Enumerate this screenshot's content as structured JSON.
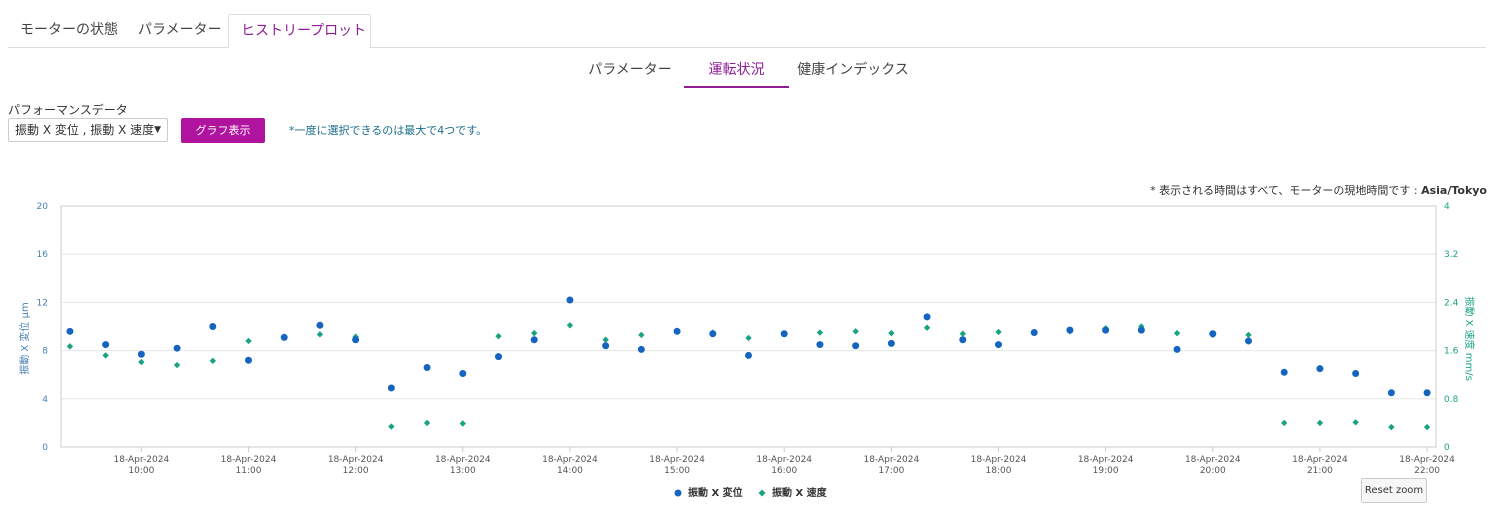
{
  "top_tabs": [
    "モーターの状態",
    "パラメーター",
    "ヒストリープロット"
  ],
  "sub_tabs": [
    "パラメーター",
    "運転状況",
    "健康インデックス"
  ],
  "performance": {
    "label": "パフォーマンスデータ",
    "selected": "振動 X 変位 , 振動 X 速度",
    "button": "グラフ表示",
    "note": "*一度に選択できるのは最大で4つです。"
  },
  "timezone_note": {
    "prefix": "* 表示される時間はすべて、モーターの現地時間です : ",
    "zone": "Asia/Tokyo"
  },
  "reset_zoom": "Reset zoom",
  "chart_data": {
    "type": "scatter",
    "x": [
      "09:20",
      "09:40",
      "10:00",
      "10:20",
      "10:40",
      "11:00",
      "11:20",
      "11:40",
      "12:00",
      "12:20",
      "12:40",
      "13:00",
      "13:20",
      "13:40",
      "14:00",
      "14:20",
      "14:40",
      "15:00",
      "15:20",
      "15:40",
      "16:00",
      "16:20",
      "16:40",
      "17:00",
      "17:20",
      "17:40",
      "18:00",
      "18:20",
      "18:40",
      "19:00",
      "19:20",
      "19:40",
      "20:00",
      "20:20",
      "20:40",
      "21:00",
      "21:20",
      "21:40",
      "22:00"
    ],
    "series": [
      {
        "name": "振動 X 変位",
        "axis": "left",
        "color": "#1565c0",
        "marker": "circle",
        "values": [
          9.6,
          8.5,
          7.7,
          8.2,
          10.0,
          7.2,
          9.1,
          10.1,
          8.9,
          4.9,
          6.6,
          6.1,
          7.5,
          8.9,
          12.2,
          8.4,
          8.1,
          9.6,
          9.4,
          7.6,
          9.4,
          8.5,
          8.4,
          8.6,
          10.8,
          8.9,
          8.5,
          9.5,
          9.7,
          9.7,
          9.7,
          8.1,
          9.4,
          8.8,
          6.2,
          6.5,
          6.1,
          4.5,
          4.5
        ]
      },
      {
        "name": "振動 X 速度",
        "axis": "right",
        "color": "#1aa383",
        "marker": "diamond",
        "values": [
          1.67,
          1.52,
          1.41,
          1.36,
          1.43,
          1.76,
          1.83,
          1.87,
          1.83,
          0.34,
          0.4,
          0.39,
          1.84,
          1.89,
          2.02,
          1.78,
          1.86,
          1.93,
          1.9,
          1.81,
          1.88,
          1.9,
          1.92,
          1.89,
          1.98,
          1.88,
          1.91,
          1.9,
          1.92,
          1.97,
          2.0,
          1.89,
          1.86,
          1.86,
          0.4,
          0.4,
          0.41,
          0.33,
          0.33
        ]
      }
    ],
    "x_ticks": [
      {
        "t": "10:00",
        "date": "18-Apr-2024",
        "time": "10:00"
      },
      {
        "t": "11:00",
        "date": "18-Apr-2024",
        "time": "11:00"
      },
      {
        "t": "12:00",
        "date": "18-Apr-2024",
        "time": "12:00"
      },
      {
        "t": "13:00",
        "date": "18-Apr-2024",
        "time": "13:00"
      },
      {
        "t": "14:00",
        "date": "18-Apr-2024",
        "time": "14:00"
      },
      {
        "t": "15:00",
        "date": "18-Apr-2024",
        "time": "15:00"
      },
      {
        "t": "16:00",
        "date": "18-Apr-2024",
        "time": "16:00"
      },
      {
        "t": "17:00",
        "date": "18-Apr-2024",
        "time": "17:00"
      },
      {
        "t": "18:00",
        "date": "18-Apr-2024",
        "time": "18:00"
      },
      {
        "t": "19:00",
        "date": "18-Apr-2024",
        "time": "19:00"
      },
      {
        "t": "20:00",
        "date": "18-Apr-2024",
        "time": "20:00"
      },
      {
        "t": "21:00",
        "date": "18-Apr-2024",
        "time": "21:00"
      },
      {
        "t": "22:00",
        "date": "18-Apr-2024",
        "time": "22:00"
      }
    ],
    "xlim": [
      "09:15",
      "22:05"
    ],
    "y_left": {
      "label": "振動 X 変位 µm",
      "ticks": [
        0,
        4,
        8,
        12,
        16,
        20
      ],
      "range": [
        0,
        20
      ],
      "color": "#4a7fb5"
    },
    "y_right": {
      "label": "振動 X 速度 mm/s",
      "ticks": [
        0,
        0.8,
        1.6,
        2.4,
        3.2,
        4
      ],
      "range": [
        0,
        4
      ],
      "color": "#1aa383"
    },
    "grid": true,
    "legend_position": "bottom-center"
  }
}
